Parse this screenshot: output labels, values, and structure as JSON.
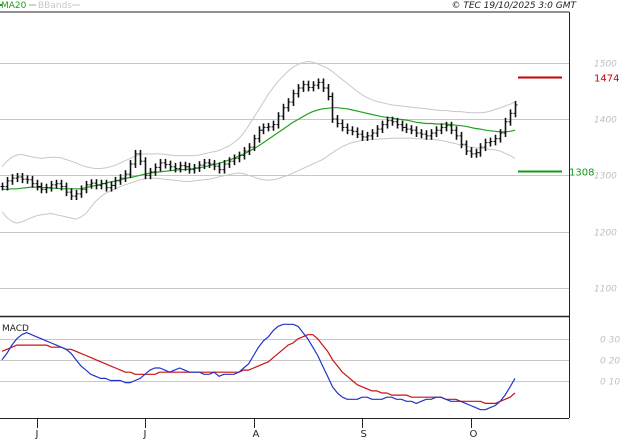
{
  "header": {
    "ma_label": "MA20",
    "bb_label": "BBands",
    "copyright": "© TEC 19/10/2025 3:0 GMT"
  },
  "macd_panel": {
    "label": "MACD"
  },
  "colors": {
    "price": "#111111",
    "ma20": "#22a022",
    "bbands": "#c8c8c8",
    "grid": "#c8c8c8",
    "level_high": "#cc0000",
    "level_low": "#119911",
    "macd_line": "#2233cc",
    "signal_line": "#cc1111"
  },
  "levels": [
    {
      "name": "resistance",
      "label": "1474",
      "value": 1474
    },
    {
      "name": "support",
      "label": "1308",
      "value": 1308
    }
  ],
  "chart_data": [
    {
      "type": "line",
      "title": "",
      "ylim": [
        1050,
        1590
      ],
      "y_ticks": [
        1100,
        1200,
        1300,
        1400,
        1500
      ],
      "y_tick_labels": [
        "1100",
        "1200",
        "1300",
        "1400",
        "1500"
      ],
      "x_month_labels": [
        "J",
        "J",
        "A",
        "S",
        "O"
      ],
      "x_month_positions": [
        7,
        29,
        51,
        73,
        95
      ],
      "n_points": 105,
      "series": [
        {
          "name": "",
          "role": "price",
          "values": [
            1280,
            1290,
            1295,
            1297,
            1293,
            1292,
            1285,
            1280,
            1275,
            1278,
            1283,
            1285,
            1280,
            1270,
            1263,
            1267,
            1275,
            1283,
            1286,
            1282,
            1285,
            1278,
            1282,
            1290,
            1295,
            1302,
            1320,
            1338,
            1325,
            1300,
            1306,
            1314,
            1322,
            1319,
            1315,
            1312,
            1317,
            1315,
            1310,
            1313,
            1318,
            1322,
            1320,
            1316,
            1310,
            1320,
            1325,
            1330,
            1335,
            1343,
            1350,
            1365,
            1380,
            1385,
            1386,
            1390,
            1405,
            1420,
            1430,
            1445,
            1455,
            1461,
            1456,
            1460,
            1465,
            1455,
            1440,
            1400,
            1392,
            1385,
            1380,
            1378,
            1373,
            1368,
            1370,
            1375,
            1382,
            1390,
            1397,
            1395,
            1390,
            1385,
            1382,
            1380,
            1375,
            1373,
            1370,
            1375,
            1380,
            1385,
            1388,
            1380,
            1370,
            1355,
            1343,
            1338,
            1340,
            1350,
            1358,
            1360,
            1365,
            1375,
            1395,
            1410,
            1425
          ]
        },
        {
          "name": "MA20",
          "role": "ma20",
          "values": [
            1275,
            1275,
            1276,
            1276,
            1277,
            1278,
            1279,
            1279,
            1278,
            1278,
            1277,
            1277,
            1276,
            1276,
            1276,
            1276,
            1276,
            1278,
            1280,
            1282,
            1284,
            1286,
            1288,
            1290,
            1292,
            1294,
            1296,
            1298,
            1300,
            1302,
            1304,
            1305,
            1306,
            1307,
            1308,
            1309,
            1310,
            1310,
            1311,
            1312,
            1313,
            1315,
            1317,
            1319,
            1321,
            1324,
            1327,
            1330,
            1334,
            1338,
            1342,
            1347,
            1352,
            1358,
            1364,
            1370,
            1376,
            1382,
            1388,
            1394,
            1399,
            1404,
            1409,
            1413,
            1416,
            1418,
            1419,
            1420,
            1420,
            1419,
            1418,
            1416,
            1414,
            1412,
            1410,
            1408,
            1406,
            1404,
            1403,
            1402,
            1400,
            1399,
            1398,
            1396,
            1394,
            1393,
            1392,
            1392,
            1391,
            1391,
            1391,
            1390,
            1389,
            1388,
            1387,
            1385,
            1383,
            1382,
            1380,
            1379,
            1378,
            1377,
            1377,
            1378,
            1380
          ]
        },
        {
          "name": "BBands",
          "role": "bb_upper",
          "values": [
            1315,
            1325,
            1332,
            1336,
            1337,
            1335,
            1333,
            1331,
            1330,
            1331,
            1332,
            1332,
            1331,
            1328,
            1325,
            1322,
            1318,
            1315,
            1313,
            1312,
            1312,
            1313,
            1315,
            1318,
            1322,
            1326,
            1330,
            1334,
            1337,
            1338,
            1338,
            1338,
            1338,
            1337,
            1336,
            1335,
            1335,
            1335,
            1335,
            1335,
            1336,
            1338,
            1340,
            1342,
            1344,
            1348,
            1352,
            1358,
            1365,
            1375,
            1388,
            1402,
            1416,
            1430,
            1444,
            1456,
            1467,
            1476,
            1485,
            1492,
            1497,
            1500,
            1502,
            1501,
            1498,
            1494,
            1490,
            1484,
            1477,
            1470,
            1463,
            1456,
            1449,
            1443,
            1438,
            1434,
            1431,
            1429,
            1427,
            1425,
            1424,
            1423,
            1422,
            1421,
            1420,
            1419,
            1418,
            1417,
            1416,
            1415,
            1415,
            1414,
            1413,
            1413,
            1412,
            1411,
            1411,
            1411,
            1412,
            1414,
            1417,
            1420,
            1423,
            1426,
            1430
          ]
        },
        {
          "name": "BBands",
          "role": "bb_lower",
          "values": [
            1235,
            1225,
            1218,
            1215,
            1217,
            1221,
            1225,
            1228,
            1230,
            1231,
            1232,
            1230,
            1228,
            1226,
            1224,
            1222,
            1226,
            1232,
            1243,
            1254,
            1262,
            1268,
            1272,
            1276,
            1280,
            1283,
            1286,
            1289,
            1292,
            1294,
            1295,
            1295,
            1294,
            1293,
            1292,
            1291,
            1290,
            1289,
            1289,
            1290,
            1291,
            1292,
            1293,
            1295,
            1297,
            1299,
            1301,
            1303,
            1304,
            1303,
            1300,
            1297,
            1294,
            1292,
            1291,
            1292,
            1294,
            1297,
            1300,
            1304,
            1308,
            1312,
            1316,
            1320,
            1324,
            1328,
            1334,
            1340,
            1346,
            1351,
            1355,
            1358,
            1360,
            1362,
            1363,
            1364,
            1364,
            1365,
            1365,
            1366,
            1366,
            1366,
            1366,
            1366,
            1365,
            1365,
            1364,
            1364,
            1363,
            1362,
            1360,
            1358,
            1356,
            1354,
            1352,
            1350,
            1349,
            1348,
            1347,
            1346,
            1345,
            1343,
            1339,
            1335,
            1330
          ]
        }
      ]
    },
    {
      "type": "line",
      "title": "MACD",
      "ylim": [
        -8,
        40
      ],
      "y_ticks": [
        10,
        20,
        30
      ],
      "y_tick_labels": [
        "0 10",
        "0 20",
        "0 30"
      ],
      "series": [
        {
          "name": "",
          "role": "macd",
          "values": [
            20,
            23,
            27,
            30,
            32,
            33,
            32,
            31,
            30,
            29,
            28,
            27,
            26,
            25,
            23,
            20,
            17,
            15,
            13,
            12,
            11,
            11,
            10,
            10,
            10,
            9,
            9,
            10,
            11,
            13,
            15,
            16,
            16,
            15,
            14,
            15,
            16,
            15,
            14,
            14,
            14,
            13,
            13,
            14,
            12,
            13,
            13,
            13,
            14,
            16,
            18,
            22,
            26,
            29,
            31,
            34,
            36,
            37,
            37,
            37,
            36,
            33,
            30,
            26,
            22,
            17,
            12,
            7,
            4,
            2,
            1,
            1,
            1,
            2,
            2,
            1,
            1,
            1,
            2,
            2,
            1,
            1,
            0,
            0,
            -1,
            0,
            1,
            1,
            2,
            2,
            1,
            0,
            0,
            0,
            -1,
            -2,
            -3,
            -4,
            -4,
            -3,
            -2,
            0,
            3,
            7,
            11
          ]
        },
        {
          "name": "",
          "role": "signal",
          "values": [
            24,
            25,
            26,
            27,
            27,
            27,
            27,
            27,
            27,
            27,
            26,
            26,
            26,
            25,
            25,
            24,
            23,
            22,
            21,
            20,
            19,
            18,
            17,
            16,
            15,
            14,
            14,
            13,
            13,
            13,
            13,
            13,
            14,
            14,
            14,
            14,
            14,
            14,
            14,
            14,
            14,
            14,
            14,
            14,
            14,
            14,
            14,
            14,
            14,
            15,
            15,
            16,
            17,
            18,
            19,
            21,
            23,
            25,
            27,
            28,
            30,
            31,
            32,
            32,
            30,
            27,
            24,
            20,
            17,
            14,
            12,
            10,
            8,
            7,
            6,
            5,
            5,
            4,
            4,
            3,
            3,
            3,
            3,
            2,
            2,
            2,
            2,
            2,
            2,
            2,
            1,
            1,
            1,
            0,
            0,
            0,
            0,
            0,
            -1,
            -1,
            -1,
            0,
            1,
            2,
            4
          ]
        }
      ]
    }
  ]
}
